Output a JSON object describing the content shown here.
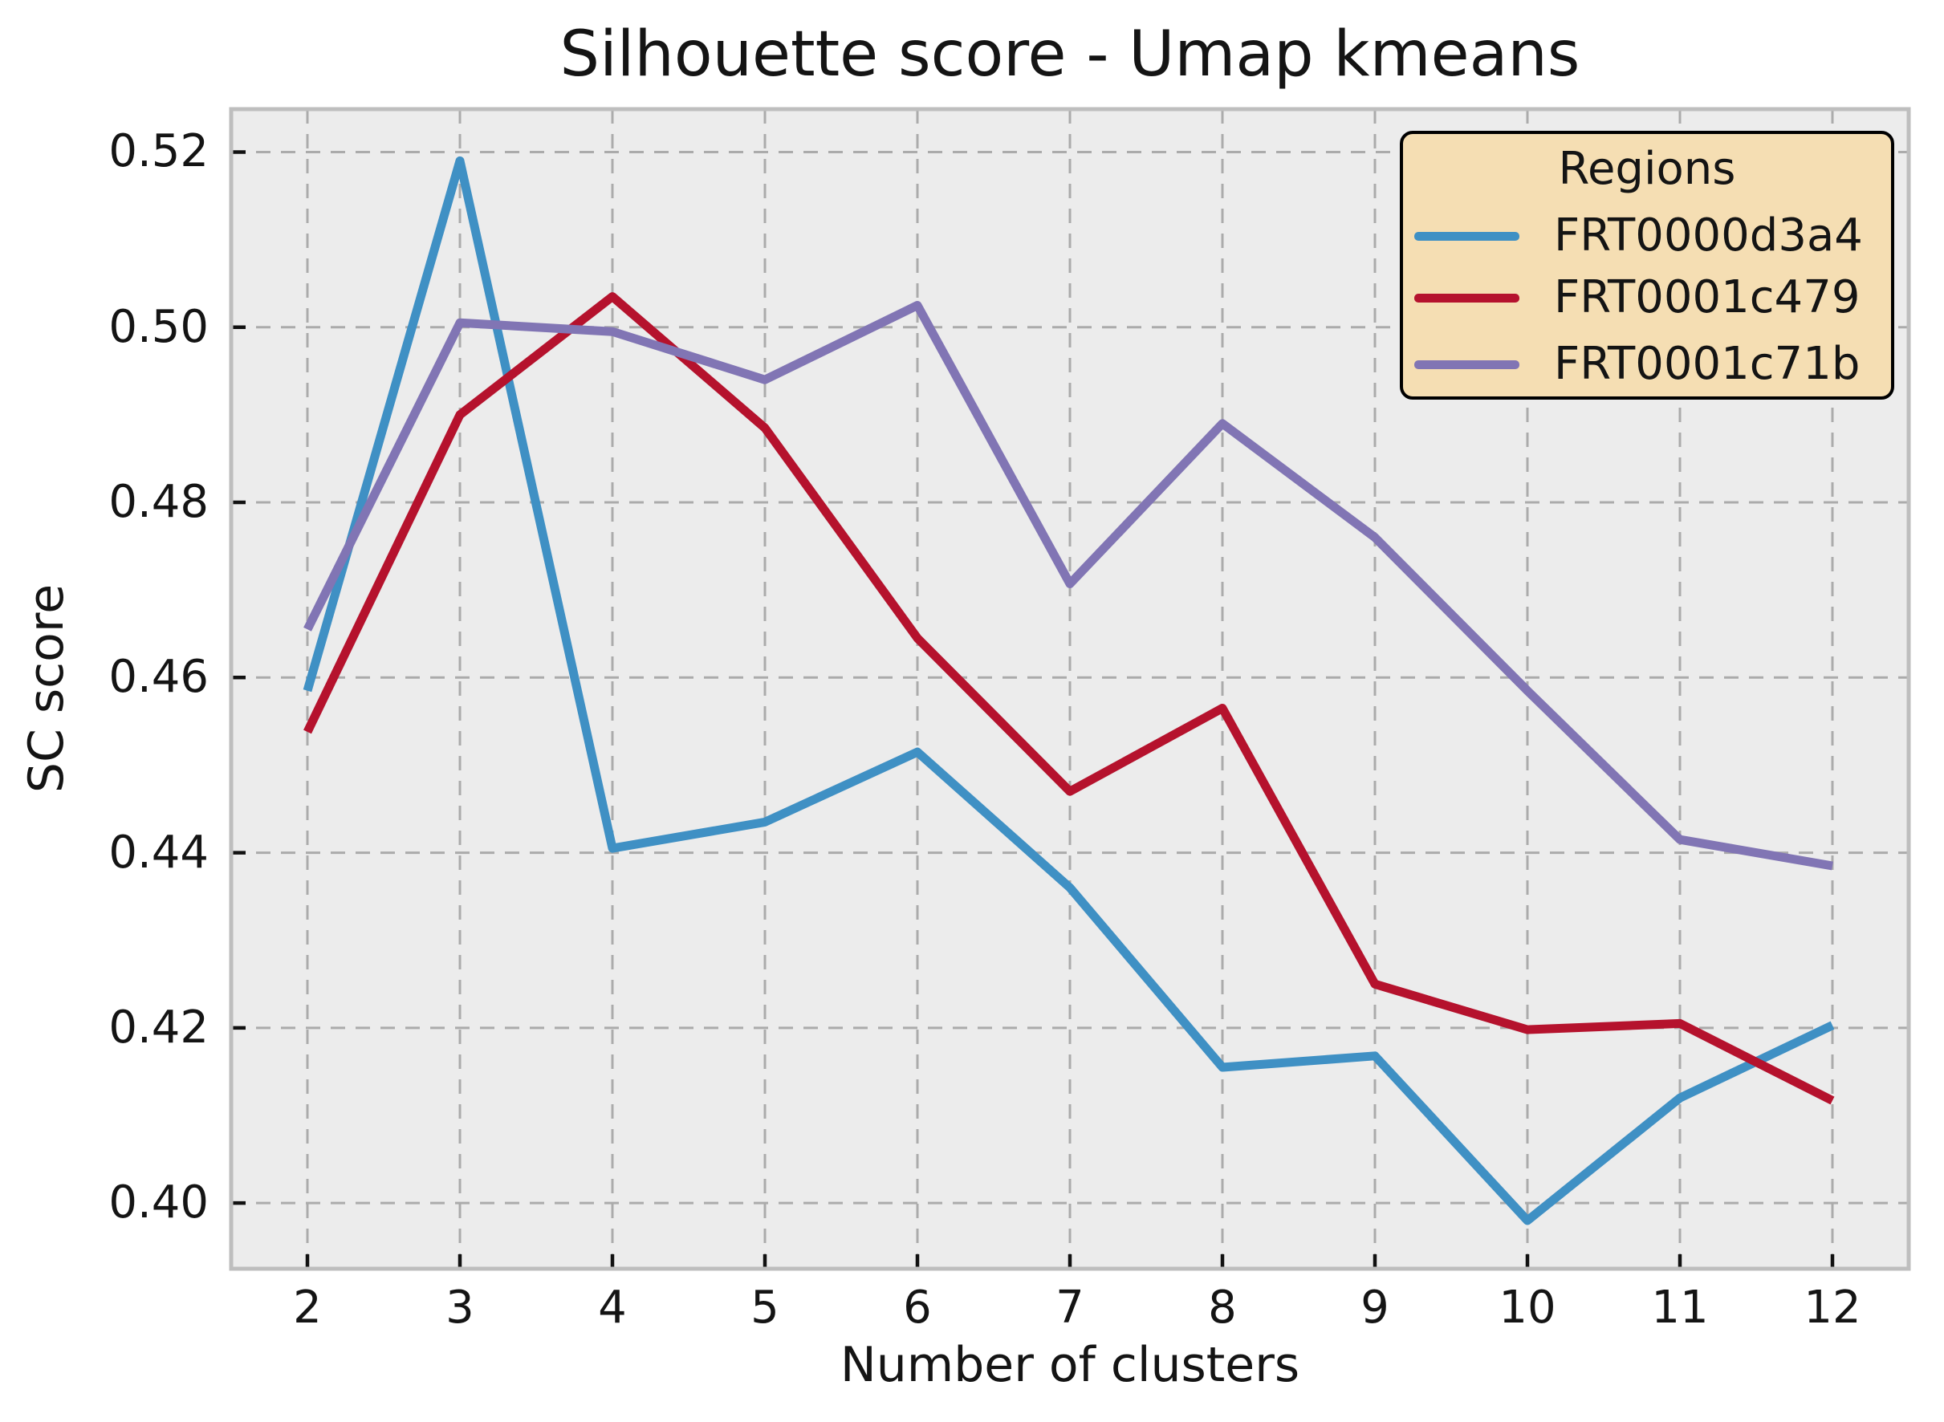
{
  "chart_data": {
    "type": "line",
    "title": "Silhouette score - Umap kmeans",
    "xlabel": "Number of clusters",
    "ylabel": "SC score",
    "x": [
      2,
      3,
      4,
      5,
      6,
      7,
      8,
      9,
      10,
      11,
      12
    ],
    "xlim": [
      1.5,
      12.5
    ],
    "ylim": [
      0.3925,
      0.5249
    ],
    "xticks": [
      2,
      3,
      4,
      5,
      6,
      7,
      8,
      9,
      10,
      11,
      12
    ],
    "xtick_labels": [
      "2",
      "3",
      "4",
      "5",
      "6",
      "7",
      "8",
      "9",
      "10",
      "11",
      "12"
    ],
    "yticks": [
      0.4,
      0.42,
      0.44,
      0.46,
      0.48,
      0.5,
      0.52
    ],
    "ytick_labels": [
      "0.40",
      "0.42",
      "0.44",
      "0.46",
      "0.48",
      "0.50",
      "0.52"
    ],
    "grid": "dashed",
    "legend": {
      "title": "Regions",
      "position": "upper right",
      "facecolor": "#F5DEB3",
      "edgecolor": "#000000"
    },
    "series": [
      {
        "name": "FRT0000d3a4",
        "color": "#3F90C4",
        "values": [
          0.4585,
          0.519,
          0.4405,
          0.4435,
          0.4515,
          0.436,
          0.4155,
          0.4168,
          0.398,
          0.412,
          0.4203
        ]
      },
      {
        "name": "FRT0001c479",
        "color": "#B5122D",
        "values": [
          0.4538,
          0.49,
          0.5035,
          0.4885,
          0.4645,
          0.447,
          0.4565,
          0.425,
          0.4198,
          0.4205,
          0.4117
        ]
      },
      {
        "name": "FRT0001c71b",
        "color": "#8175B4",
        "values": [
          0.4655,
          0.5005,
          0.4995,
          0.494,
          0.5025,
          0.4707,
          0.489,
          0.476,
          0.4585,
          0.4415,
          0.4385
        ]
      }
    ],
    "style": {
      "plot_bg": "#ECECEC",
      "grid_color": "#ABABAB",
      "spine_color": "#BEBEBE",
      "tick_color": "#111111",
      "line_width": 11
    }
  }
}
